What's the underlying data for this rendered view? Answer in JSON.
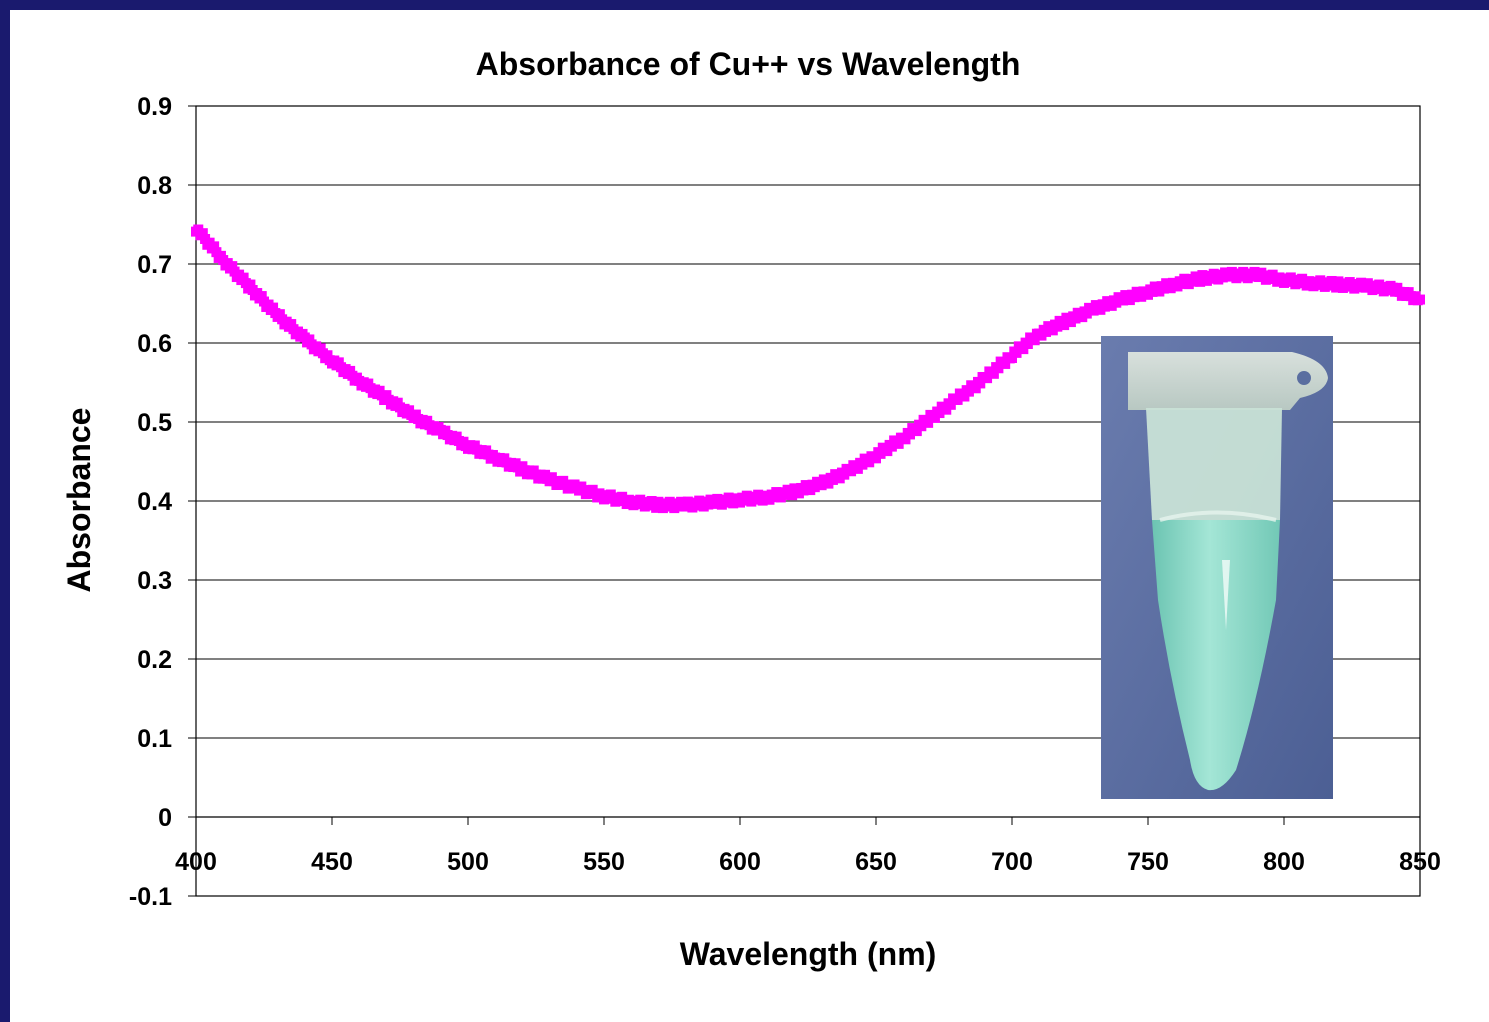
{
  "colors": {
    "background_frame": "#1a1a6e",
    "series": "#ff00ff",
    "grid": "#000000",
    "photo_bg": "#5a6ea0",
    "tube_liquid": "#8fd8c8",
    "tube_plastic": "#cfe6dc"
  },
  "chart_data": {
    "type": "scatter",
    "title": "Absorbance of Cu++ vs Wavelength",
    "xlabel": "Wavelength (nm)",
    "ylabel": "Absorbance",
    "xlim": [
      400,
      850
    ],
    "ylim": [
      -0.1,
      0.9
    ],
    "x_ticks": [
      "400",
      "450",
      "500",
      "550",
      "600",
      "650",
      "700",
      "750",
      "800",
      "850"
    ],
    "y_ticks": [
      "-0.1",
      "0",
      "0.1",
      "0.2",
      "0.3",
      "0.4",
      "0.5",
      "0.6",
      "0.7",
      "0.8",
      "0.9"
    ],
    "grid": "horizontal",
    "legend": "none",
    "series": [
      {
        "marker": "square",
        "x": [
          400,
          410,
          420,
          430,
          440,
          450,
          460,
          470,
          480,
          490,
          500,
          510,
          520,
          530,
          540,
          550,
          560,
          570,
          580,
          590,
          600,
          610,
          620,
          630,
          640,
          650,
          660,
          670,
          680,
          690,
          700,
          710,
          720,
          730,
          740,
          750,
          760,
          770,
          780,
          790,
          800,
          810,
          820,
          830,
          840,
          850
        ],
        "y": [
          0.745,
          0.705,
          0.67,
          0.635,
          0.605,
          0.578,
          0.552,
          0.53,
          0.507,
          0.488,
          0.47,
          0.455,
          0.44,
          0.427,
          0.416,
          0.406,
          0.399,
          0.395,
          0.395,
          0.398,
          0.402,
          0.405,
          0.412,
          0.422,
          0.438,
          0.458,
          0.48,
          0.505,
          0.53,
          0.555,
          0.585,
          0.612,
          0.628,
          0.643,
          0.655,
          0.665,
          0.675,
          0.682,
          0.686,
          0.686,
          0.68,
          0.676,
          0.674,
          0.672,
          0.668,
          0.655
        ]
      }
    ],
    "inset_image": "microcentrifuge-tube-photo"
  }
}
